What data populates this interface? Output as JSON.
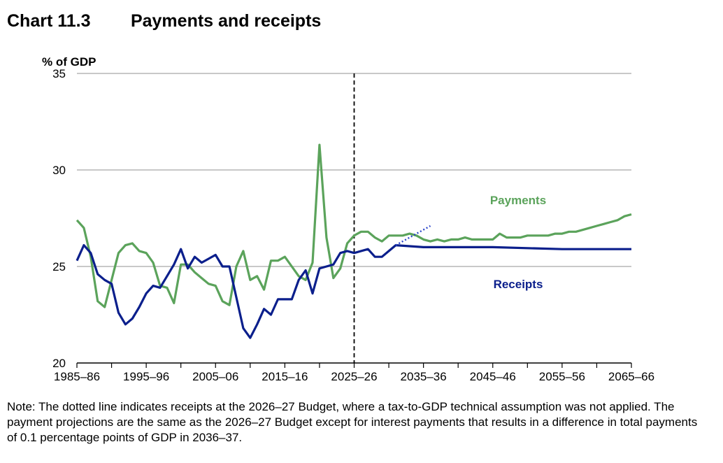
{
  "header": {
    "chart_number": "Chart 11.3",
    "title": "Payments and receipts"
  },
  "note": "Note: The dotted line indicates receipts at the 2026–27 Budget, where a tax-to-GDP technical assumption was not applied. The payment projections are the same as the 2026–27 Budget except for interest payments that results in a difference in total payments of 0.1 percentage points of GDP in 2036–37.",
  "chart_data": {
    "type": "line",
    "title": "Payments and receipts",
    "ylabel": "% of GDP",
    "ylim": [
      20,
      35
    ],
    "yticks": [
      20,
      25,
      30,
      35
    ],
    "xlim": [
      1985,
      2065
    ],
    "xtick_labels": [
      "1985–86",
      "1995–96",
      "2005–06",
      "2015–16",
      "2025–26",
      "2035–36",
      "2045–46",
      "2055–56",
      "2065–66"
    ],
    "xtick_years": [
      1985,
      1995,
      2005,
      2015,
      2025,
      2035,
      2045,
      2055,
      2065
    ],
    "grid": "horizontal",
    "projection_start": 2025,
    "series": [
      {
        "name": "Payments",
        "color": "#5ba35b",
        "x": [
          1985,
          1986,
          1987,
          1988,
          1989,
          1990,
          1991,
          1992,
          1993,
          1994,
          1995,
          1996,
          1997,
          1998,
          1999,
          2000,
          2001,
          2002,
          2003,
          2004,
          2005,
          2006,
          2007,
          2008,
          2009,
          2010,
          2011,
          2012,
          2013,
          2014,
          2015,
          2016,
          2017,
          2018,
          2019,
          2020,
          2021,
          2022,
          2023,
          2024,
          2025,
          2026,
          2027,
          2028,
          2029,
          2030,
          2031,
          2032,
          2033,
          2034,
          2035,
          2036,
          2037,
          2038,
          2039,
          2040,
          2041,
          2042,
          2043,
          2044,
          2045,
          2046,
          2047,
          2048,
          2049,
          2050,
          2051,
          2052,
          2053,
          2054,
          2055,
          2056,
          2057,
          2058,
          2059,
          2060,
          2061,
          2062,
          2063,
          2064,
          2065
        ],
        "values": [
          27.4,
          27.0,
          25.5,
          23.2,
          22.9,
          24.3,
          25.7,
          26.1,
          26.2,
          25.8,
          25.7,
          25.2,
          24.0,
          23.9,
          23.1,
          25.1,
          25.1,
          24.7,
          24.4,
          24.1,
          24.0,
          23.2,
          23.0,
          25.0,
          25.8,
          24.3,
          24.5,
          23.8,
          25.3,
          25.3,
          25.5,
          25.0,
          24.5,
          24.3,
          25.2,
          31.3,
          26.5,
          24.4,
          24.9,
          26.2,
          26.6,
          26.8,
          26.8,
          26.5,
          26.3,
          26.6,
          26.6,
          26.6,
          26.7,
          26.6,
          26.4,
          26.3,
          26.4,
          26.3,
          26.4,
          26.4,
          26.5,
          26.4,
          26.4,
          26.4,
          26.4,
          26.7,
          26.5,
          26.5,
          26.5,
          26.6,
          26.6,
          26.6,
          26.6,
          26.7,
          26.7,
          26.8,
          26.8,
          26.9,
          27.0,
          27.1,
          27.2,
          27.3,
          27.4,
          27.6,
          27.7
        ]
      },
      {
        "name": "Receipts",
        "color": "#0b1f8c",
        "x": [
          1985,
          1986,
          1987,
          1988,
          1989,
          1990,
          1991,
          1992,
          1993,
          1994,
          1995,
          1996,
          1997,
          1998,
          1999,
          2000,
          2001,
          2002,
          2003,
          2004,
          2005,
          2006,
          2007,
          2008,
          2009,
          2010,
          2011,
          2012,
          2013,
          2014,
          2015,
          2016,
          2017,
          2018,
          2019,
          2020,
          2021,
          2022,
          2023,
          2024,
          2025,
          2026,
          2027,
          2028,
          2029,
          2030,
          2031,
          2035,
          2045,
          2055,
          2065
        ],
        "values": [
          25.3,
          26.1,
          25.7,
          24.6,
          24.3,
          24.1,
          22.6,
          22.0,
          22.3,
          22.9,
          23.6,
          24.0,
          23.9,
          24.5,
          25.1,
          25.9,
          24.9,
          25.5,
          25.2,
          25.4,
          25.6,
          25.0,
          25.0,
          23.4,
          21.8,
          21.3,
          22.0,
          22.8,
          22.5,
          23.3,
          23.3,
          23.3,
          24.3,
          24.8,
          23.6,
          24.9,
          25.0,
          25.1,
          25.7,
          25.8,
          25.7,
          25.8,
          25.9,
          25.5,
          25.5,
          25.8,
          26.1,
          26.0,
          26.0,
          25.9,
          25.9
        ]
      },
      {
        "name": "",
        "color": "#2a44c9",
        "style": "dotted",
        "x": [
          2031,
          2036
        ],
        "values": [
          26.1,
          27.1
        ]
      }
    ],
    "series_labels": [
      "Payments",
      "Receipts"
    ]
  }
}
